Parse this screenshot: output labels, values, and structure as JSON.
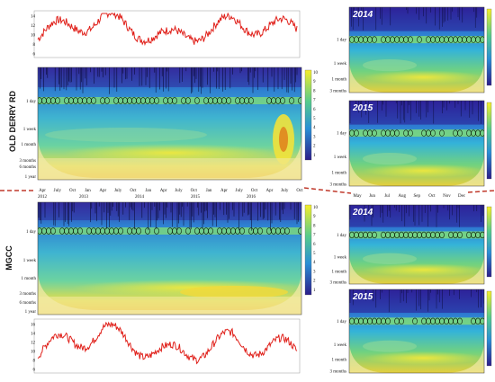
{
  "sites": {
    "top": "OLD DERRY RD",
    "bottom": "MGCC"
  },
  "year_labels": {
    "tr1": "2014",
    "tr2": "2015",
    "br1": "2014",
    "br2": "2015"
  },
  "period_ticks_left": [
    "1 day",
    "1 week",
    "1 month",
    "3 months",
    "6 months",
    "1 year"
  ],
  "period_ticks_small": [
    "1 day",
    "1 week",
    "1 month",
    "3 months"
  ],
  "month_ticks_top": [
    "Apr",
    "July",
    "Oct",
    "Jan",
    "Apr",
    "July",
    "Oct",
    "Jan",
    "Apr",
    "July",
    "Oct",
    "Jan",
    "Apr",
    "July",
    "Oct",
    "Apr",
    "July",
    "Oct"
  ],
  "year_ticks_top": [
    "2012",
    "2013",
    "2014",
    "2015",
    "2016"
  ],
  "month_ticks_right": [
    "May",
    "Jun",
    "Jul",
    "Aug",
    "Sep",
    "Oct",
    "Nov",
    "Dec"
  ],
  "ts_top_yticks": [
    "14",
    "12",
    "10",
    "8",
    "6"
  ],
  "ts_bottom_yticks": [
    "16",
    "14",
    "12",
    "10",
    "8",
    "6"
  ],
  "colorbar_ticks": [
    "10",
    "9",
    "8",
    "7",
    "6",
    "5",
    "4",
    "3",
    "2",
    "1"
  ],
  "colors": {
    "series": "#e0201a",
    "cone": "#f3e9a6",
    "low": "#2a1f8c",
    "mid": "#1fa8d8",
    "high": "#f4ee2a",
    "divider": "#c0392b"
  },
  "chart_data": [
    {
      "type": "line",
      "title": "",
      "x": [
        "2012",
        "2013",
        "2014",
        "2015",
        "2016"
      ],
      "series": [
        {
          "values": [
            10,
            13,
            9,
            12,
            11
          ]
        }
      ],
      "ylim": [
        6,
        14
      ]
    },
    {
      "type": "heatmap",
      "title": "OLD DERRY RD",
      "xlabel": "",
      "ylabel": "",
      "x_ticks": [
        "Apr 2012",
        "Jan 2013",
        "Jan 2014",
        "Jan 2015",
        "Jan 2016",
        "Oct"
      ],
      "y_ticks": [
        "1 day",
        "1 week",
        "1 month",
        "3 months",
        "6 months",
        "1 year"
      ]
    },
    {
      "type": "heatmap",
      "title": "MGCC",
      "y_ticks": [
        "1 day",
        "1 week",
        "1 month",
        "3 months",
        "6 months",
        "1 year"
      ]
    },
    {
      "type": "line",
      "x": [
        "2012",
        "2013",
        "2014",
        "2015",
        "2016"
      ],
      "series": [
        {
          "values": [
            10,
            14,
            9,
            12,
            10
          ]
        }
      ],
      "ylim": [
        6,
        16
      ]
    }
  ]
}
